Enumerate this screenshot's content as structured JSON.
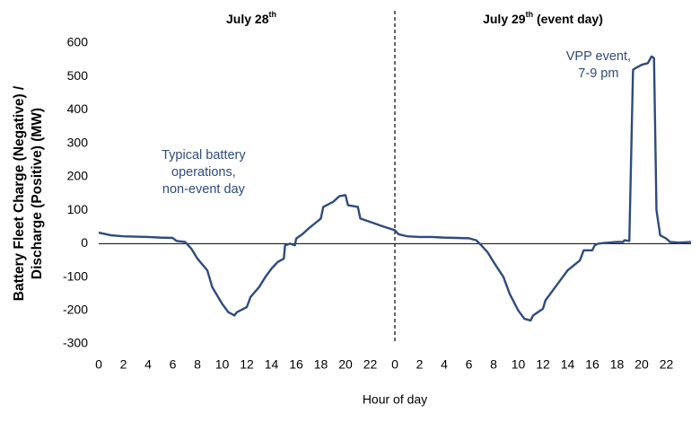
{
  "chart_data": {
    "type": "line",
    "headers": [
      {
        "text": "July 28",
        "sup": "th"
      },
      {
        "text": "July 29",
        "sup": "th",
        "suffix": " (event day)"
      }
    ],
    "ylabel": [
      "Battery Fleet Charge (Negative) /",
      "Discharge (Positive) (MW)"
    ],
    "xlabel": "Hour of day",
    "annotations": [
      {
        "lines": [
          "Typical battery",
          "operations,",
          "non-event day"
        ],
        "x": 8.5,
        "y": 205
      },
      {
        "lines": [
          "VPP event,",
          "7-9 pm"
        ],
        "x": 40.5,
        "y": 500
      }
    ],
    "day_divider": 24,
    "xlim": [
      0,
      48
    ],
    "ylim": [
      -300,
      600
    ],
    "yticks": [
      -300,
      -200,
      -100,
      0,
      100,
      200,
      300,
      400,
      500,
      600
    ],
    "xticks": [
      0,
      2,
      4,
      6,
      8,
      10,
      12,
      14,
      16,
      18,
      20,
      22,
      {
        "value": 24,
        "label": "0"
      },
      {
        "value": 26,
        "label": "2"
      },
      {
        "value": 28,
        "label": "4"
      },
      {
        "value": 30,
        "label": "6"
      },
      {
        "value": 32,
        "label": "8"
      },
      {
        "value": 34,
        "label": "10"
      },
      {
        "value": 36,
        "label": "12"
      },
      {
        "value": 38,
        "label": "14"
      },
      {
        "value": 40,
        "label": "16"
      },
      {
        "value": 42,
        "label": "18"
      },
      {
        "value": 44,
        "label": "20"
      },
      {
        "value": 46,
        "label": "22"
      }
    ],
    "x": [
      0,
      1,
      2,
      3,
      4,
      5,
      6,
      6.3,
      7,
      7.5,
      8,
      8.8,
      9.2,
      10,
      10.5,
      11,
      11.2,
      12,
      12.3,
      13,
      13.5,
      14,
      14.5,
      15,
      15.1,
      15.5,
      15.9,
      16,
      16.5,
      17,
      17.5,
      18,
      18.2,
      19,
      19.5,
      20,
      20.2,
      21,
      21.2,
      22,
      23,
      24,
      24.3,
      25,
      26,
      27,
      28,
      29,
      30,
      30.6,
      31,
      31.5,
      32,
      32.8,
      33.3,
      34,
      34.5,
      35,
      35.2,
      36,
      36.2,
      37,
      37.5,
      38,
      38.5,
      39,
      39.3,
      40,
      40.2,
      40.5,
      41,
      42,
      42.5,
      42.6,
      43,
      43.3,
      43.5,
      44,
      44.5,
      44.8,
      45,
      45.2,
      45.5,
      46,
      46.3,
      47,
      48
    ],
    "series": [
      {
        "color": "#2f4b7c",
        "values": [
          33,
          25,
          22,
          21,
          20,
          18,
          17,
          8,
          5,
          -15,
          -45,
          -80,
          -130,
          -180,
          -205,
          -215,
          -205,
          -190,
          -160,
          -130,
          -100,
          -75,
          -55,
          -45,
          -5,
          0,
          -5,
          15,
          28,
          45,
          60,
          75,
          110,
          125,
          142,
          145,
          115,
          110,
          75,
          65,
          52,
          40,
          28,
          22,
          20,
          20,
          18,
          17,
          16,
          10,
          -5,
          -25,
          -55,
          -100,
          -150,
          -200,
          -225,
          -230,
          -215,
          -195,
          -170,
          -130,
          -105,
          -80,
          -65,
          -50,
          -20,
          -20,
          -5,
          0,
          2,
          5,
          5,
          10,
          8,
          520,
          525,
          535,
          540,
          560,
          555,
          100,
          25,
          15,
          5,
          3,
          5
        ]
      }
    ]
  }
}
